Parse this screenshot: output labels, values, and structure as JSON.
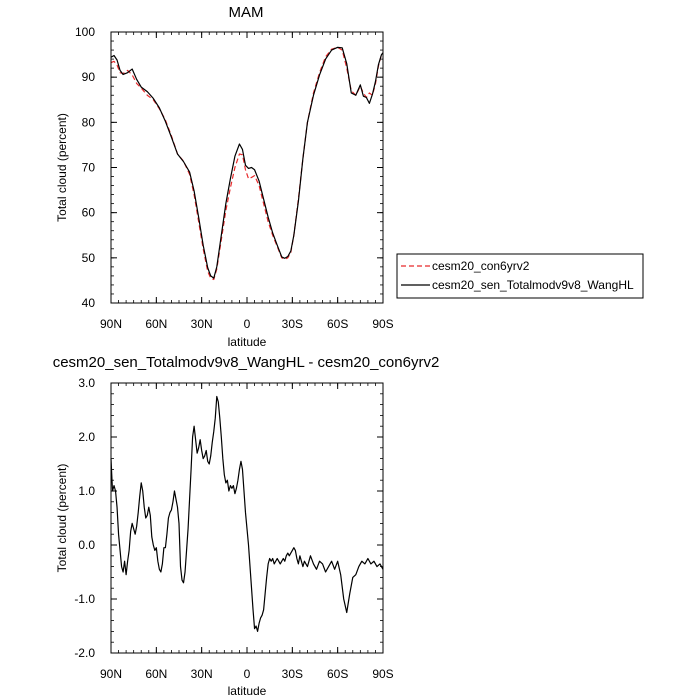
{
  "chart_data": [
    {
      "type": "line",
      "title": "MAM",
      "xlabel": "latitude",
      "ylabel": "Total cloud (percent)",
      "xlim": [
        90,
        -90
      ],
      "ylim": [
        40,
        100
      ],
      "xticks": [
        90,
        60,
        30,
        0,
        -30,
        -60,
        -90
      ],
      "xtick_labels": [
        "90N",
        "60N",
        "30N",
        "0",
        "30S",
        "60S",
        "90S"
      ],
      "yticks": [
        40,
        50,
        60,
        70,
        80,
        90,
        100
      ],
      "ytick_labels": [
        "40",
        "50",
        "60",
        "70",
        "80",
        "90",
        "100"
      ],
      "grid": false,
      "legend_position": "right",
      "series": [
        {
          "name": "cesm20_con6yrv2",
          "color": "#e8292a",
          "dash": "dashed",
          "x": [
            90,
            88,
            86,
            84,
            82,
            79,
            76,
            73,
            70,
            66,
            62,
            58,
            54,
            50,
            46,
            42,
            38,
            35,
            32,
            29,
            26,
            24,
            22,
            20,
            17,
            14,
            11,
            8,
            5,
            3,
            1,
            -1,
            -3,
            -5,
            -8,
            -11,
            -14,
            -17,
            -20,
            -23,
            -25,
            -27,
            -29,
            -31,
            -34,
            -37,
            -40,
            -44,
            -48,
            -52,
            -56,
            -60,
            -63,
            -66,
            -69,
            -72,
            -75,
            -77,
            -79,
            -81,
            -83,
            -85,
            -87,
            -89,
            -90
          ],
          "values": [
            93.2,
            93.5,
            92.7,
            91.0,
            90.8,
            91.5,
            90.5,
            88.6,
            87.6,
            86.0,
            85.0,
            83.0,
            80.5,
            77.0,
            73.0,
            71.4,
            68.5,
            64.0,
            58.0,
            52.0,
            47.0,
            45.5,
            45.2,
            47.5,
            54.0,
            60.5,
            65.5,
            70.0,
            73.0,
            72.8,
            69.5,
            67.5,
            67.8,
            68.2,
            66.0,
            62.0,
            58.0,
            55.0,
            52.5,
            50.0,
            49.7,
            50.0,
            51.2,
            55.0,
            63.0,
            72.0,
            80.0,
            86.5,
            91.0,
            94.5,
            96.2,
            96.6,
            96.0,
            92.0,
            87.0,
            86.0,
            88.0,
            86.5,
            85.5,
            86.5,
            86.0,
            88.5,
            92.5,
            95.0,
            95.3
          ]
        },
        {
          "name": "cesm20_sen_Totalmodv9v8_WangHL",
          "color": "#000000",
          "dash": "solid",
          "x": [
            90,
            88,
            86,
            84,
            82,
            79,
            76,
            73,
            70,
            66,
            62,
            58,
            54,
            50,
            46,
            42,
            38,
            35,
            32,
            29,
            26,
            24,
            22,
            20,
            17,
            14,
            11,
            8,
            5,
            3,
            1,
            -1,
            -3,
            -5,
            -8,
            -11,
            -14,
            -17,
            -20,
            -23,
            -25,
            -27,
            -29,
            -31,
            -34,
            -37,
            -40,
            -44,
            -48,
            -52,
            -56,
            -60,
            -63,
            -66,
            -69,
            -72,
            -75,
            -77,
            -79,
            -81,
            -83,
            -85,
            -87,
            -89,
            -90
          ],
          "values": [
            94.4,
            94.8,
            93.8,
            91.5,
            90.6,
            91.0,
            91.8,
            89.5,
            87.8,
            86.8,
            85.3,
            83.2,
            80.2,
            76.7,
            73.0,
            71.3,
            69.0,
            64.8,
            59.0,
            52.8,
            47.8,
            46.0,
            45.5,
            48.0,
            55.0,
            62.0,
            67.5,
            72.5,
            75.2,
            74.0,
            70.5,
            69.8,
            70.0,
            69.5,
            67.0,
            63.0,
            59.0,
            55.5,
            52.8,
            50.2,
            49.9,
            50.3,
            51.5,
            55.0,
            62.5,
            72.0,
            80.0,
            86.0,
            90.5,
            94.0,
            96.0,
            96.6,
            96.5,
            93.0,
            86.5,
            86.0,
            88.3,
            85.8,
            85.5,
            84.2,
            86.2,
            89.0,
            92.8,
            95.0,
            95.4
          ]
        }
      ]
    },
    {
      "type": "line",
      "title": "cesm20_sen_Totalmodv9v8_WangHL - cesm20_con6yrv2",
      "xlabel": "latitude",
      "ylabel": "Total cloud (percent)",
      "xlim": [
        90,
        -90
      ],
      "ylim": [
        -2.0,
        3.0
      ],
      "xticks": [
        90,
        60,
        30,
        0,
        -30,
        -60,
        -90
      ],
      "xtick_labels": [
        "90N",
        "60N",
        "30N",
        "0",
        "30S",
        "60S",
        "90S"
      ],
      "yticks": [
        -2.0,
        -1.0,
        0.0,
        1.0,
        2.0,
        3.0
      ],
      "ytick_labels": [
        "-2.0",
        "-1.0",
        "0.0",
        "1.0",
        "2.0",
        "3.0"
      ],
      "grid": false,
      "series": [
        {
          "color": "#000000",
          "dash": "solid",
          "x": [
            90,
            89,
            88,
            87,
            86,
            85,
            84,
            83,
            82,
            81,
            80,
            79,
            78,
            77,
            76,
            75,
            74,
            73,
            72,
            71,
            70,
            69,
            68,
            67,
            66,
            65,
            64,
            63,
            62,
            61,
            60,
            59,
            58,
            57,
            56,
            55,
            54,
            53,
            52,
            51,
            50,
            49,
            48,
            47,
            46,
            45,
            44,
            43,
            42,
            41,
            40,
            39,
            38,
            37,
            36,
            35,
            34,
            33,
            32,
            31,
            30,
            29,
            28,
            27,
            26,
            25,
            24,
            23,
            22,
            21,
            20,
            19,
            18,
            17,
            16,
            15,
            14,
            13,
            12,
            11,
            10,
            9,
            8,
            7,
            6,
            5,
            4,
            3,
            2,
            1,
            0,
            -1,
            -2,
            -3,
            -4,
            -5,
            -6,
            -7,
            -8,
            -9,
            -10,
            -11,
            -12,
            -13,
            -14,
            -15,
            -16,
            -17,
            -18,
            -19,
            -20,
            -21,
            -22,
            -23,
            -24,
            -25,
            -26,
            -27,
            -28,
            -29,
            -30,
            -31,
            -32,
            -33,
            -34,
            -35,
            -36,
            -37,
            -38,
            -39,
            -40,
            -42,
            -44,
            -46,
            -48,
            -50,
            -52,
            -54,
            -56,
            -58,
            -60,
            -62,
            -64,
            -66,
            -68,
            -70,
            -72,
            -74,
            -76,
            -78,
            -80,
            -82,
            -84,
            -86,
            -88,
            -90
          ],
          "values": [
            1.6,
            1.0,
            1.1,
            1.0,
            0.7,
            0.2,
            -0.1,
            -0.4,
            -0.5,
            -0.3,
            -0.55,
            -0.3,
            -0.1,
            0.25,
            0.4,
            0.3,
            0.2,
            0.35,
            0.6,
            0.9,
            1.15,
            1.0,
            0.7,
            0.5,
            0.55,
            0.7,
            0.55,
            0.15,
            0.0,
            -0.1,
            -0.05,
            -0.3,
            -0.45,
            -0.5,
            -0.35,
            -0.05,
            -0.05,
            0.2,
            0.5,
            0.6,
            0.65,
            0.8,
            1.0,
            0.85,
            0.7,
            0.4,
            -0.4,
            -0.65,
            -0.7,
            -0.5,
            -0.1,
            0.3,
            0.85,
            1.4,
            2.0,
            2.2,
            1.95,
            1.7,
            1.8,
            1.95,
            1.75,
            1.6,
            1.65,
            1.75,
            1.55,
            1.5,
            1.65,
            1.9,
            2.1,
            2.35,
            2.75,
            2.65,
            2.35,
            2.0,
            1.6,
            1.3,
            1.15,
            1.2,
            1.0,
            1.1,
            1.05,
            1.1,
            0.95,
            1.05,
            1.2,
            1.4,
            1.55,
            1.4,
            1.0,
            0.6,
            0.3,
            0.0,
            -0.4,
            -0.8,
            -1.2,
            -1.55,
            -1.5,
            -1.6,
            -1.45,
            -1.35,
            -1.3,
            -1.2,
            -0.9,
            -0.6,
            -0.35,
            -0.25,
            -0.3,
            -0.25,
            -0.35,
            -0.3,
            -0.25,
            -0.3,
            -0.35,
            -0.3,
            -0.25,
            -0.3,
            -0.2,
            -0.15,
            -0.2,
            -0.15,
            -0.1,
            -0.05,
            -0.1,
            -0.25,
            -0.35,
            -0.2,
            -0.3,
            -0.4,
            -0.3,
            -0.35,
            -0.4,
            -0.2,
            -0.35,
            -0.45,
            -0.3,
            -0.35,
            -0.5,
            -0.4,
            -0.3,
            -0.45,
            -0.3,
            -0.55,
            -1.0,
            -1.25,
            -0.9,
            -0.6,
            -0.55,
            -0.4,
            -0.3,
            -0.35,
            -0.25,
            -0.35,
            -0.3,
            -0.4,
            -0.35,
            -0.45
          ]
        }
      ]
    }
  ]
}
